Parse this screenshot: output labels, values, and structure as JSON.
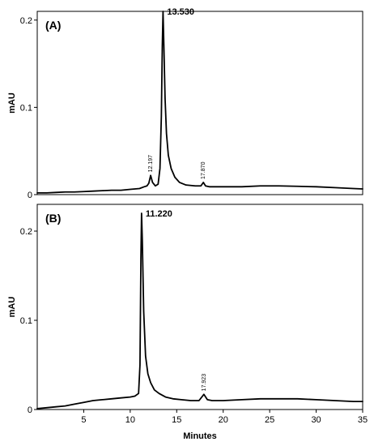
{
  "chart_data": [
    {
      "type": "line",
      "panel_label": "(A)",
      "ylabel": "mAU",
      "xlabel": "",
      "xlim": [
        0,
        35
      ],
      "ylim": [
        0,
        0.21
      ],
      "y_ticks": [
        "0",
        "0.1",
        "0.2"
      ],
      "y_tick_values": [
        0,
        0.1,
        0.2
      ],
      "x_ticks": [],
      "peaks": [
        {
          "label": "12.197",
          "x": 12.197,
          "y": 0.022,
          "style": "small"
        },
        {
          "label": "13.530",
          "x": 13.53,
          "y": 0.21,
          "style": "main"
        },
        {
          "label": "17.870",
          "x": 17.87,
          "y": 0.014,
          "style": "small"
        }
      ],
      "series": [
        {
          "color": "#000000",
          "x": [
            0,
            1,
            2,
            3,
            4,
            5,
            6,
            7,
            8,
            9,
            10,
            11,
            11.5,
            11.8,
            12.0,
            12.197,
            12.4,
            12.7,
            13.0,
            13.2,
            13.35,
            13.45,
            13.53,
            13.62,
            13.75,
            13.9,
            14.1,
            14.4,
            14.8,
            15.3,
            16.0,
            17.0,
            17.6,
            17.87,
            18.1,
            18.5,
            19,
            20,
            22,
            24,
            26,
            28,
            30,
            32,
            34,
            35
          ],
          "y": [
            0.002,
            0.002,
            0.0025,
            0.003,
            0.003,
            0.0035,
            0.004,
            0.0045,
            0.005,
            0.005,
            0.006,
            0.007,
            0.009,
            0.01,
            0.013,
            0.022,
            0.014,
            0.01,
            0.012,
            0.03,
            0.09,
            0.17,
            0.21,
            0.17,
            0.11,
            0.07,
            0.045,
            0.03,
            0.02,
            0.014,
            0.011,
            0.01,
            0.01,
            0.014,
            0.01,
            0.009,
            0.009,
            0.009,
            0.009,
            0.01,
            0.01,
            0.0095,
            0.009,
            0.008,
            0.007,
            0.0065
          ]
        }
      ]
    },
    {
      "type": "line",
      "panel_label": "(B)",
      "ylabel": "mAU",
      "xlabel": "Minutes",
      "xlim": [
        0,
        35
      ],
      "ylim": [
        0,
        0.23
      ],
      "y_ticks": [
        "0",
        "0.1",
        "0.2"
      ],
      "y_tick_values": [
        0,
        0.1,
        0.2
      ],
      "x_ticks": [
        "5",
        "10",
        "15",
        "20",
        "25",
        "30",
        "35"
      ],
      "x_tick_values": [
        5,
        10,
        15,
        20,
        25,
        30,
        35
      ],
      "peaks": [
        {
          "label": "11.220",
          "x": 11.22,
          "y": 0.22,
          "style": "main"
        },
        {
          "label": "17.923",
          "x": 17.923,
          "y": 0.017,
          "style": "small"
        }
      ],
      "series": [
        {
          "color": "#000000",
          "x": [
            0,
            1,
            2,
            3,
            4,
            5,
            6,
            7,
            8,
            9,
            10,
            10.5,
            10.9,
            11.05,
            11.15,
            11.22,
            11.3,
            11.45,
            11.65,
            11.9,
            12.2,
            12.6,
            13.1,
            13.8,
            14.6,
            15.5,
            16.5,
            17.4,
            17.923,
            18.3,
            18.8,
            19.5,
            20,
            22,
            24,
            26,
            28,
            30,
            32,
            34,
            35
          ],
          "y": [
            0.001,
            0.002,
            0.003,
            0.004,
            0.006,
            0.008,
            0.01,
            0.011,
            0.012,
            0.013,
            0.014,
            0.015,
            0.018,
            0.05,
            0.17,
            0.22,
            0.19,
            0.11,
            0.06,
            0.04,
            0.03,
            0.022,
            0.018,
            0.014,
            0.012,
            0.011,
            0.01,
            0.01,
            0.017,
            0.011,
            0.01,
            0.01,
            0.01,
            0.011,
            0.012,
            0.012,
            0.012,
            0.011,
            0.01,
            0.009,
            0.009
          ]
        }
      ]
    }
  ]
}
